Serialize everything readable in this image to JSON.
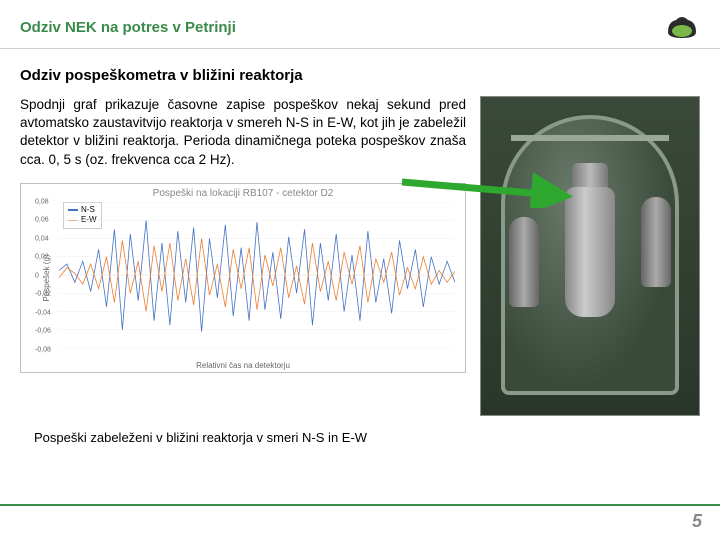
{
  "header": {
    "title": "Odziv NEK na potres v Petrinji"
  },
  "subtitle": "Odziv pospeškometra v bližini reaktorja",
  "paragraph": "Spodnji graf prikazuje časovne zapise pospeškov nekaj sekund pred avtomatsko zaustavitvijo reaktorja v smereh N-S in E-W, kot jih je zabeležil detektor v bližini reaktorja. Perioda dinamičnega poteka pospeškov znaša cca. 0, 5 s (oz. frekvenca cca 2 Hz).",
  "chart": {
    "type": "line",
    "title": "Pospeški na lokaciji RB107 - cetektor D2",
    "xlabel": "Relativni čas na detektorju",
    "ylabel": "Pospešek (g)",
    "ylim": [
      -0.08,
      0.08
    ],
    "yticks": [
      -0.08,
      -0.06,
      -0.04,
      -0.02,
      0,
      0.02,
      0.04,
      0.06,
      0.08
    ],
    "ytick_labels": [
      "-0,08",
      "-0,06",
      "-0,04",
      "-0,02",
      "0",
      "0,02",
      "0,04",
      "0,06",
      "0,08"
    ],
    "xrange": [
      0,
      5
    ],
    "series": [
      {
        "name": "N-S",
        "color": "#4472c4",
        "points": [
          [
            0.0,
            0.005
          ],
          [
            0.1,
            0.012
          ],
          [
            0.2,
            -0.008
          ],
          [
            0.3,
            0.015
          ],
          [
            0.4,
            -0.018
          ],
          [
            0.5,
            0.028
          ],
          [
            0.6,
            -0.035
          ],
          [
            0.7,
            0.05
          ],
          [
            0.8,
            -0.06
          ],
          [
            0.9,
            0.045
          ],
          [
            1.0,
            -0.028
          ],
          [
            1.1,
            0.06
          ],
          [
            1.2,
            -0.05
          ],
          [
            1.3,
            0.035
          ],
          [
            1.4,
            -0.055
          ],
          [
            1.5,
            0.048
          ],
          [
            1.6,
            -0.03
          ],
          [
            1.7,
            0.052
          ],
          [
            1.8,
            -0.062
          ],
          [
            1.9,
            0.04
          ],
          [
            2.0,
            -0.025
          ],
          [
            2.1,
            0.055
          ],
          [
            2.2,
            -0.045
          ],
          [
            2.3,
            0.03
          ],
          [
            2.4,
            -0.05
          ],
          [
            2.5,
            0.058
          ],
          [
            2.6,
            -0.038
          ],
          [
            2.7,
            0.025
          ],
          [
            2.8,
            -0.048
          ],
          [
            2.9,
            0.042
          ],
          [
            3.0,
            -0.02
          ],
          [
            3.1,
            0.05
          ],
          [
            3.2,
            -0.055
          ],
          [
            3.3,
            0.035
          ],
          [
            3.4,
            -0.028
          ],
          [
            3.5,
            0.045
          ],
          [
            3.6,
            -0.04
          ],
          [
            3.7,
            0.022
          ],
          [
            3.8,
            -0.05
          ],
          [
            3.9,
            0.048
          ],
          [
            4.0,
            -0.03
          ],
          [
            4.1,
            0.018
          ],
          [
            4.2,
            -0.042
          ],
          [
            4.3,
            0.038
          ],
          [
            4.4,
            -0.015
          ],
          [
            4.5,
            0.028
          ],
          [
            4.6,
            -0.035
          ],
          [
            4.7,
            0.02
          ],
          [
            4.8,
            -0.01
          ],
          [
            4.9,
            0.015
          ],
          [
            5.0,
            -0.008
          ]
        ]
      },
      {
        "name": "E-W",
        "color": "#ed7d31",
        "points": [
          [
            0.0,
            -0.003
          ],
          [
            0.1,
            0.008
          ],
          [
            0.2,
            0.002
          ],
          [
            0.3,
            -0.01
          ],
          [
            0.4,
            0.012
          ],
          [
            0.5,
            -0.015
          ],
          [
            0.6,
            0.02
          ],
          [
            0.7,
            -0.03
          ],
          [
            0.8,
            0.038
          ],
          [
            0.9,
            -0.02
          ],
          [
            1.0,
            0.015
          ],
          [
            1.1,
            -0.04
          ],
          [
            1.2,
            0.032
          ],
          [
            1.3,
            -0.018
          ],
          [
            1.4,
            0.035
          ],
          [
            1.5,
            -0.028
          ],
          [
            1.6,
            0.018
          ],
          [
            1.7,
            -0.033
          ],
          [
            1.8,
            0.04
          ],
          [
            1.9,
            -0.022
          ],
          [
            2.0,
            0.012
          ],
          [
            2.1,
            -0.035
          ],
          [
            2.2,
            0.028
          ],
          [
            2.3,
            -0.015
          ],
          [
            2.4,
            0.03
          ],
          [
            2.5,
            -0.038
          ],
          [
            2.6,
            0.022
          ],
          [
            2.7,
            -0.012
          ],
          [
            2.8,
            0.03
          ],
          [
            2.9,
            -0.025
          ],
          [
            3.0,
            0.01
          ],
          [
            3.1,
            -0.032
          ],
          [
            3.2,
            0.035
          ],
          [
            3.3,
            -0.018
          ],
          [
            3.4,
            0.015
          ],
          [
            3.5,
            -0.028
          ],
          [
            3.6,
            0.025
          ],
          [
            3.7,
            -0.01
          ],
          [
            3.8,
            0.032
          ],
          [
            3.9,
            -0.03
          ],
          [
            4.0,
            0.018
          ],
          [
            4.1,
            -0.008
          ],
          [
            4.2,
            0.025
          ],
          [
            4.3,
            -0.022
          ],
          [
            4.4,
            0.008
          ],
          [
            4.5,
            -0.015
          ],
          [
            4.6,
            0.02
          ],
          [
            4.7,
            -0.01
          ],
          [
            4.8,
            0.005
          ],
          [
            4.9,
            -0.008
          ],
          [
            5.0,
            0.004
          ]
        ]
      }
    ],
    "grid_color": "#eeeeee",
    "background_color": "#ffffff",
    "title_fontsize": 10,
    "label_fontsize": 8
  },
  "arrow": {
    "color": "#2ea82e",
    "stroke_width": 7
  },
  "caption": "Pospeški zabeleženi v bližini reaktorja v smeri N-S in E-W",
  "page_number": "5",
  "logo": {
    "outer_color": "#2b2b2b",
    "inner_color": "#7ab84a"
  }
}
